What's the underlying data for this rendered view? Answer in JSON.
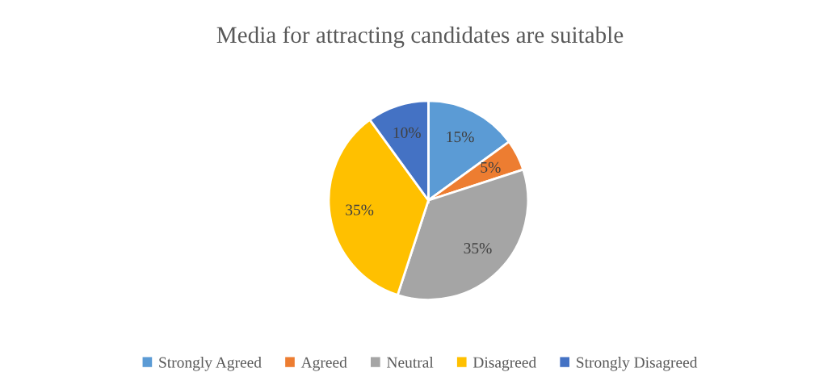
{
  "chart_data": {
    "type": "pie",
    "title": "Media for attracting candidates are suitable",
    "categories": [
      "Strongly Agreed",
      "Agreed",
      "Neutral",
      "Disagreed",
      "Strongly Disagreed"
    ],
    "values": [
      15,
      5,
      35,
      35,
      10
    ],
    "colors": [
      "#5b9bd5",
      "#ed7d31",
      "#a5a5a5",
      "#ffc000",
      "#4472c4"
    ],
    "value_labels": [
      "15%",
      "5%",
      "35%",
      "35%",
      "10%"
    ],
    "legend": "bottom"
  }
}
